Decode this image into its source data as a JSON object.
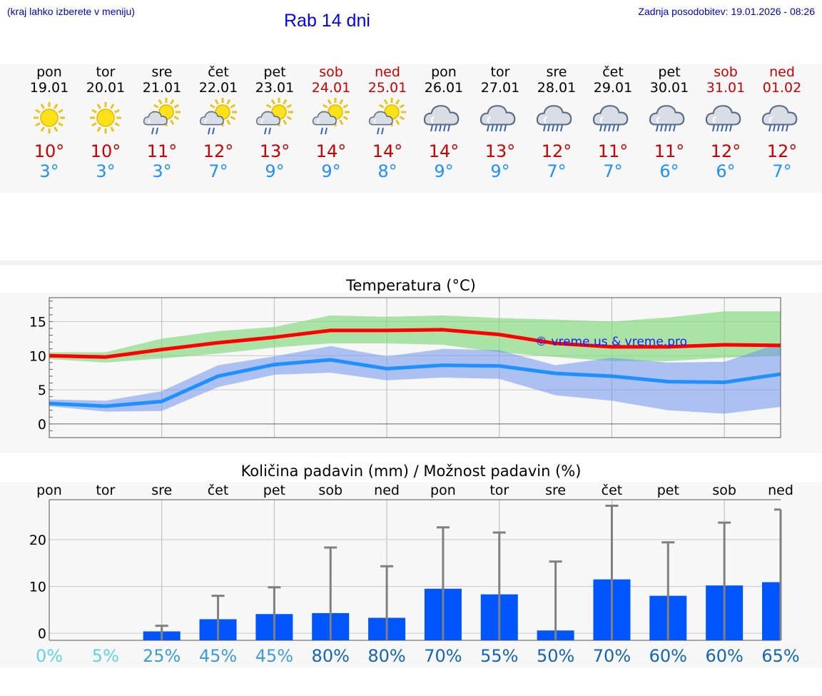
{
  "header": {
    "hint": "(kraj lahko izberete v meniju)",
    "title": "Rab 14 dni",
    "updated": "Zadnja posodobitev: 19.01.2026 - 08:26"
  },
  "days": [
    {
      "name": "pon",
      "date": "19.01",
      "weekend": false,
      "icon": "sun-icon",
      "tmax": "10°",
      "tmin": "3°"
    },
    {
      "name": "tor",
      "date": "20.01",
      "weekend": false,
      "icon": "sun-icon",
      "tmax": "10°",
      "tmin": "3°"
    },
    {
      "name": "sre",
      "date": "21.01",
      "weekend": false,
      "icon": "sun-cloud-rain-icon",
      "tmax": "11°",
      "tmin": "3°"
    },
    {
      "name": "čet",
      "date": "22.01",
      "weekend": false,
      "icon": "sun-cloud-rain-icon",
      "tmax": "12°",
      "tmin": "7°"
    },
    {
      "name": "pet",
      "date": "23.01",
      "weekend": false,
      "icon": "sun-cloud-rain-icon",
      "tmax": "13°",
      "tmin": "9°"
    },
    {
      "name": "sob",
      "date": "24.01",
      "weekend": true,
      "icon": "sun-cloud-rain-icon",
      "tmax": "14°",
      "tmin": "9°"
    },
    {
      "name": "ned",
      "date": "25.01",
      "weekend": true,
      "icon": "sun-cloud-rain-icon",
      "tmax": "14°",
      "tmin": "8°"
    },
    {
      "name": "pon",
      "date": "26.01",
      "weekend": false,
      "icon": "cloud-rain-icon",
      "tmax": "14°",
      "tmin": "9°"
    },
    {
      "name": "tor",
      "date": "27.01",
      "weekend": false,
      "icon": "cloud-rain-icon",
      "tmax": "13°",
      "tmin": "9°"
    },
    {
      "name": "sre",
      "date": "28.01",
      "weekend": false,
      "icon": "cloud-rain-icon",
      "tmax": "12°",
      "tmin": "7°"
    },
    {
      "name": "čet",
      "date": "29.01",
      "weekend": false,
      "icon": "cloud-rain-icon",
      "tmax": "11°",
      "tmin": "7°"
    },
    {
      "name": "pet",
      "date": "30.01",
      "weekend": false,
      "icon": "cloud-rain-icon",
      "tmax": "11°",
      "tmin": "6°"
    },
    {
      "name": "sob",
      "date": "31.01",
      "weekend": true,
      "icon": "cloud-rain-icon",
      "tmax": "12°",
      "tmin": "6°"
    },
    {
      "name": "ned",
      "date": "01.02",
      "weekend": true,
      "icon": "cloud-rain-icon",
      "tmax": "12°",
      "tmin": "7°"
    }
  ],
  "colors": {
    "max_line": "#ff0000",
    "max_band": "#a5e6a0",
    "min_line": "#1e90ff",
    "min_band": "#a6bff5",
    "overlap": "#7ec4a6",
    "bar": "#0055ff",
    "error": "#808080",
    "grid": "#c8c8c8"
  },
  "chart_data": [
    {
      "type": "line",
      "title": "Temperatura (°C)",
      "watermark": "© vreme.us & vreme.pro",
      "xlabel": "",
      "ylabel": "",
      "ylim": [
        -2,
        18.5
      ],
      "yticks": [
        0,
        5,
        10,
        15
      ],
      "x": [
        0,
        1,
        2,
        3,
        4,
        5,
        6,
        7,
        8,
        9,
        10,
        11,
        12,
        13
      ],
      "series": [
        {
          "name": "max",
          "values": [
            10,
            9.8,
            10.9,
            11.9,
            12.7,
            13.7,
            13.7,
            13.8,
            13.1,
            11.8,
            11.3,
            11.3,
            11.6,
            11.5
          ],
          "band_low": [
            9.5,
            9.0,
            9.6,
            10.3,
            11.2,
            11.8,
            11.8,
            11.6,
            10.5,
            9.8,
            9.2,
            9.2,
            9.7,
            10.0
          ],
          "band_high": [
            10.5,
            10.5,
            12.5,
            13.6,
            14.2,
            15.9,
            15.7,
            15.9,
            15.5,
            15.3,
            15.0,
            15.6,
            16.5,
            16.5
          ]
        },
        {
          "name": "min",
          "values": [
            3.0,
            2.6,
            3.3,
            7.0,
            8.7,
            9.4,
            8.1,
            8.6,
            8.5,
            7.4,
            7.0,
            6.2,
            6.1,
            7.3
          ],
          "band_low": [
            2.6,
            1.8,
            1.9,
            5.4,
            7.2,
            7.5,
            6.4,
            6.8,
            6.6,
            4.2,
            3.4,
            2.0,
            1.5,
            2.5
          ],
          "band_high": [
            3.6,
            3.4,
            4.8,
            8.6,
            9.9,
            11.4,
            9.9,
            11.0,
            10.8,
            8.6,
            9.7,
            9.0,
            9.1,
            11.9
          ]
        }
      ]
    },
    {
      "type": "bar",
      "title": "Količina padavin (mm) / Možnost padavin (%)",
      "categories": [
        "pon",
        "tor",
        "sre",
        "čet",
        "pet",
        "sob",
        "ned",
        "pon",
        "tor",
        "sre",
        "čet",
        "pet",
        "sob",
        "ned"
      ],
      "values": [
        0,
        0,
        0.4,
        3.0,
        4.1,
        4.3,
        3.3,
        9.5,
        8.3,
        0.6,
        11.5,
        8.0,
        10.2,
        10.9
      ],
      "error_high": [
        0,
        0,
        1.6,
        8.0,
        9.8,
        18.3,
        14.3,
        22.6,
        21.5,
        15.3,
        27.2,
        19.4,
        23.6,
        26.4
      ],
      "probability": [
        "0%",
        "5%",
        "25%",
        "45%",
        "45%",
        "80%",
        "80%",
        "70%",
        "55%",
        "50%",
        "70%",
        "60%",
        "60%",
        "65%"
      ],
      "probability_colors": [
        "#5fd3e6",
        "#5fd3e6",
        "#3a9fd6",
        "#3a9fd6",
        "#3a9fd6",
        "#1565b5",
        "#1565b5",
        "#1565b5",
        "#1565b5",
        "#1565b5",
        "#1565b5",
        "#1565b5",
        "#1565b5",
        "#1565b5"
      ],
      "ylim": [
        -1.5,
        28.5
      ],
      "yticks": [
        0,
        10,
        20
      ]
    }
  ]
}
